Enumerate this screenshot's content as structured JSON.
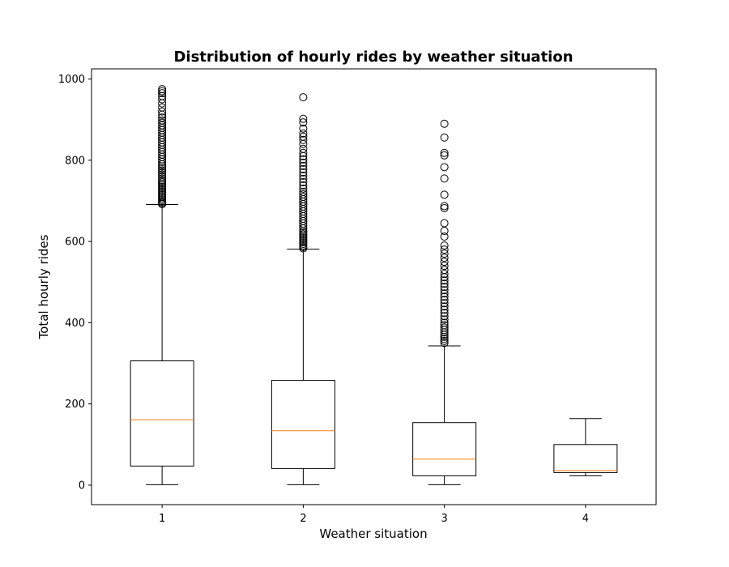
{
  "chart_data": {
    "type": "box",
    "title": "Distribution of hourly rides by weather situation",
    "xlabel": "Weather situation",
    "ylabel": "Total hourly rides",
    "categories": [
      "1",
      "2",
      "3",
      "4"
    ],
    "ylim": [
      -48,
      1025
    ],
    "yticks": [
      0,
      200,
      400,
      600,
      800,
      1000
    ],
    "grid": false,
    "colors": {
      "box": "#000000",
      "median": "#ff7f0e",
      "background": "#ffffff"
    },
    "boxes": [
      {
        "category": "1",
        "whisker_low": 1,
        "q1": 47,
        "median": 161,
        "q3": 306,
        "whisker_high": 691,
        "outliers": [
          692,
          695,
          698,
          702,
          706,
          710,
          714,
          718,
          722,
          726,
          730,
          734,
          738,
          742,
          746,
          750,
          755,
          760,
          765,
          770,
          775,
          780,
          785,
          790,
          796,
          802,
          808,
          814,
          820,
          826,
          832,
          838,
          844,
          850,
          856,
          862,
          868,
          874,
          880,
          886,
          892,
          898,
          905,
          912,
          920,
          930,
          940,
          950,
          958,
          965,
          970,
          975
        ]
      },
      {
        "category": "2",
        "whisker_low": 1,
        "q1": 41,
        "median": 134,
        "q3": 258,
        "whisker_high": 581,
        "outliers": [
          583,
          586,
          590,
          594,
          598,
          602,
          606,
          610,
          614,
          618,
          622,
          626,
          632,
          638,
          644,
          650,
          656,
          662,
          668,
          674,
          680,
          686,
          692,
          698,
          704,
          710,
          716,
          722,
          730,
          738,
          746,
          754,
          762,
          770,
          778,
          786,
          794,
          802,
          810,
          818,
          828,
          840,
          850,
          858,
          866,
          878,
          893,
          902,
          955
        ]
      },
      {
        "category": "3",
        "whisker_low": 1,
        "q1": 23,
        "median": 64,
        "q3": 154,
        "whisker_high": 343,
        "outliers": [
          350,
          355,
          360,
          365,
          370,
          376,
          382,
          388,
          394,
          400,
          408,
          416,
          424,
          432,
          440,
          448,
          456,
          464,
          472,
          480,
          488,
          496,
          504,
          512,
          520,
          530,
          540,
          550,
          560,
          570,
          580,
          590,
          612,
          626,
          645,
          682,
          687,
          715,
          755,
          783,
          812,
          818,
          856,
          890
        ]
      },
      {
        "category": "4",
        "whisker_low": 23,
        "q1": 31,
        "median": 36,
        "q3": 100,
        "whisker_high": 164,
        "outliers": []
      }
    ]
  }
}
